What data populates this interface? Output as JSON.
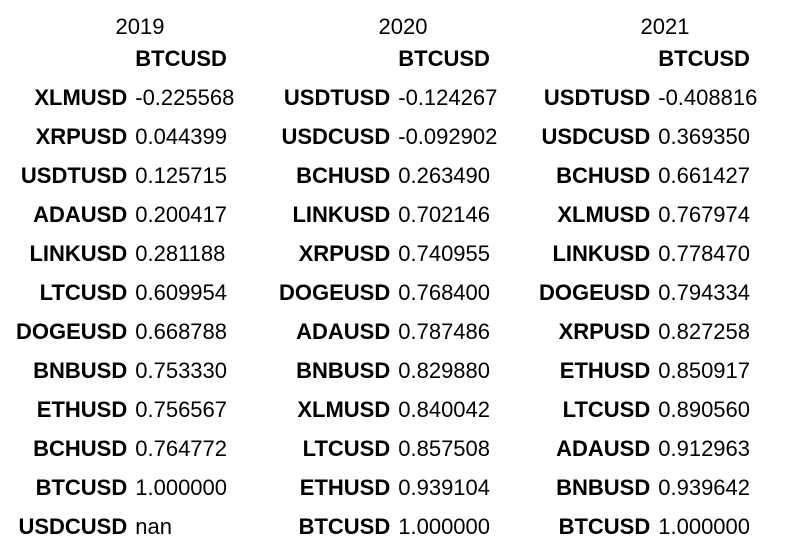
{
  "frames": [
    {
      "caption": "2019",
      "column": "BTCUSD",
      "rows": [
        {
          "label": "XLMUSD",
          "value": "-0.225568"
        },
        {
          "label": "XRPUSD",
          "value": "0.044399"
        },
        {
          "label": "USDTUSD",
          "value": "0.125715"
        },
        {
          "label": "ADAUSD",
          "value": "0.200417"
        },
        {
          "label": "LINKUSD",
          "value": "0.281188"
        },
        {
          "label": "LTCUSD",
          "value": "0.609954"
        },
        {
          "label": "DOGEUSD",
          "value": "0.668788"
        },
        {
          "label": "BNBUSD",
          "value": "0.753330"
        },
        {
          "label": "ETHUSD",
          "value": "0.756567"
        },
        {
          "label": "BCHUSD",
          "value": "0.764772"
        },
        {
          "label": "BTCUSD",
          "value": "1.000000"
        },
        {
          "label": "USDCUSD",
          "value": "nan"
        }
      ]
    },
    {
      "caption": "2020",
      "column": "BTCUSD",
      "rows": [
        {
          "label": "USDTUSD",
          "value": "-0.124267"
        },
        {
          "label": "USDCUSD",
          "value": "-0.092902"
        },
        {
          "label": "BCHUSD",
          "value": "0.263490"
        },
        {
          "label": "LINKUSD",
          "value": "0.702146"
        },
        {
          "label": "XRPUSD",
          "value": "0.740955"
        },
        {
          "label": "DOGEUSD",
          "value": "0.768400"
        },
        {
          "label": "ADAUSD",
          "value": "0.787486"
        },
        {
          "label": "BNBUSD",
          "value": "0.829880"
        },
        {
          "label": "XLMUSD",
          "value": "0.840042"
        },
        {
          "label": "LTCUSD",
          "value": "0.857508"
        },
        {
          "label": "ETHUSD",
          "value": "0.939104"
        },
        {
          "label": "BTCUSD",
          "value": "1.000000"
        }
      ]
    },
    {
      "caption": "2021",
      "column": "BTCUSD",
      "rows": [
        {
          "label": "USDTUSD",
          "value": "-0.408816"
        },
        {
          "label": "USDCUSD",
          "value": "0.369350"
        },
        {
          "label": "BCHUSD",
          "value": "0.661427"
        },
        {
          "label": "XLMUSD",
          "value": "0.767974"
        },
        {
          "label": "LINKUSD",
          "value": "0.778470"
        },
        {
          "label": "DOGEUSD",
          "value": "0.794334"
        },
        {
          "label": "XRPUSD",
          "value": "0.827258"
        },
        {
          "label": "ETHUSD",
          "value": "0.850917"
        },
        {
          "label": "LTCUSD",
          "value": "0.890560"
        },
        {
          "label": "ADAUSD",
          "value": "0.912963"
        },
        {
          "label": "BNBUSD",
          "value": "0.939642"
        },
        {
          "label": "BTCUSD",
          "value": "1.000000"
        }
      ]
    }
  ]
}
